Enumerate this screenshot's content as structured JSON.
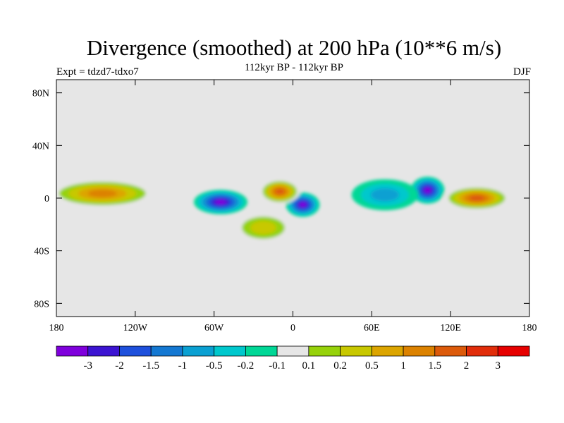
{
  "title": "Divergence (smoothed) at 200 hPa (10**6 m/s)",
  "subtitle": "112kyr BP - 112kyr BP",
  "left_label": "Expt = tdzd7-tdxo7",
  "right_label": "DJF",
  "chart_data": {
    "type": "heatmap",
    "title": "Divergence (smoothed) at 200 hPa (10**6 m/s)",
    "subtitle": "112kyr BP - 112kyr BP",
    "xlabel": "",
    "ylabel": "",
    "x_range": [
      -180,
      180
    ],
    "y_range": [
      -90,
      90
    ],
    "x_ticks": [
      "180",
      "120W",
      "60W",
      "0",
      "60E",
      "120E",
      "180"
    ],
    "y_ticks": [
      "80N",
      "40N",
      "0",
      "40S",
      "80S"
    ],
    "colorbar": {
      "labels": [
        "-3",
        "-2",
        "-1.5",
        "-1",
        "-0.5",
        "-0.2",
        "-0.1",
        "0.1",
        "0.2",
        "0.5",
        "1",
        "1.5",
        "2",
        "3"
      ],
      "colors": [
        "#7f00dc",
        "#3c14d2",
        "#1e50dc",
        "#1478d2",
        "#0aa0d2",
        "#00c8cd",
        "#00d796",
        "#e6e6e6",
        "#96d20a",
        "#c8c800",
        "#dca500",
        "#dc8200",
        "#dc5a0a",
        "#e12d0a",
        "#e60000"
      ]
    },
    "features": [
      {
        "label": "central Pacific equatorial divergence band",
        "lon": [
          -180,
          -110
        ],
        "lat": [
          -3,
          10
        ],
        "sign": "positive",
        "max_level": "1.5"
      },
      {
        "label": "Amazon convergence",
        "lon": [
          -70,
          -40
        ],
        "lat": [
          -8,
          2
        ],
        "sign": "negative",
        "min_level": "-3"
      },
      {
        "label": "Gulf of Guinea / Congo convergence",
        "lon": [
          0,
          15
        ],
        "lat": [
          -10,
          0
        ],
        "sign": "negative",
        "min_level": "-3"
      },
      {
        "label": "Maritime Continent convergence",
        "lon": [
          95,
          110
        ],
        "lat": [
          0,
          12
        ],
        "sign": "negative",
        "min_level": "-3"
      },
      {
        "label": "Australia–West Pacific divergence",
        "lon": [
          120,
          160
        ],
        "lat": [
          -5,
          5
        ],
        "sign": "positive",
        "max_level": "2"
      },
      {
        "label": "tropical Atlantic divergence",
        "lon": [
          -20,
          0
        ],
        "lat": [
          0,
          10
        ],
        "sign": "positive",
        "max_level": "2"
      },
      {
        "label": "Southern Atlantic divergence",
        "lon": [
          -40,
          -5
        ],
        "lat": [
          -30,
          -15
        ],
        "sign": "positive",
        "max_level": "0.5"
      },
      {
        "label": "Indian Ocean convergence",
        "lon": [
          50,
          90
        ],
        "lat": [
          -5,
          10
        ],
        "sign": "negative",
        "min_level": "-0.5"
      }
    ]
  }
}
